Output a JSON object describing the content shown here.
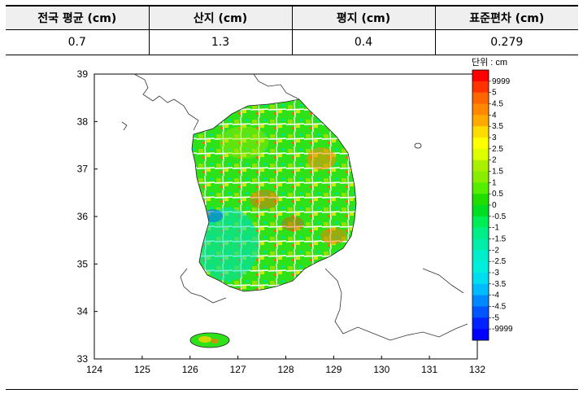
{
  "summary_table": {
    "headers": [
      "전국 평균 (cm)",
      "산지 (cm)",
      "평지 (cm)",
      "표준편차 (cm)"
    ],
    "values": [
      "0.7",
      "1.3",
      "0.4",
      "0.279"
    ]
  },
  "map": {
    "x_ticks": [
      "124",
      "125",
      "126",
      "127",
      "128",
      "129",
      "130",
      "131",
      "132"
    ],
    "y_ticks": [
      "39",
      "38",
      "37",
      "36",
      "35",
      "34",
      "33"
    ],
    "legend": {
      "unit_label": "단위 : cm",
      "labels": [
        "9999",
        "5",
        "4.5",
        "4",
        "3.5",
        "3",
        "2.5",
        "2",
        "1.5",
        "1",
        "0.5",
        "0",
        "-0.5",
        "-1",
        "-1.5",
        "-2",
        "-2.5",
        "-3",
        "-3.5",
        "-4",
        "-4.5",
        "-5",
        "-9999"
      ],
      "colors": [
        "#ff0000",
        "#ff3300",
        "#ff6600",
        "#ff8800",
        "#ffaa00",
        "#ffdd00",
        "#ffff00",
        "#ddff00",
        "#aaee00",
        "#88ee00",
        "#55ee00",
        "#22dd00",
        "#00dd22",
        "#00ee55",
        "#00ee88",
        "#00eeaa",
        "#00eecc",
        "#00eedd",
        "#00ddee",
        "#00bbff",
        "#0088ff",
        "#0055ff",
        "#0022ff",
        "#0000ff"
      ]
    }
  }
}
